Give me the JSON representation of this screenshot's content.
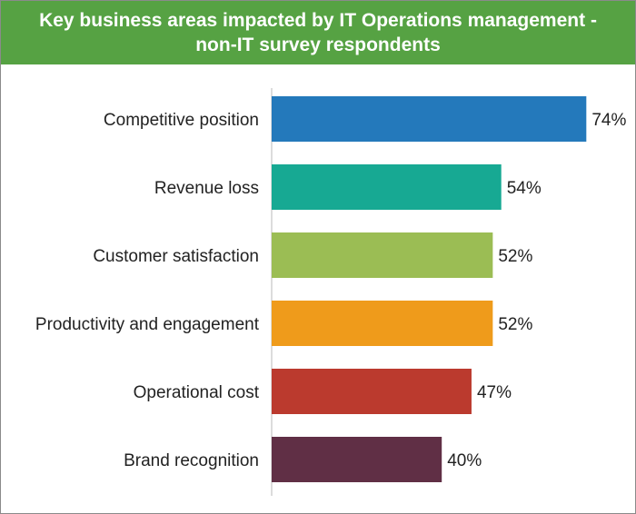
{
  "chart_data": {
    "type": "bar",
    "orientation": "horizontal",
    "title": "Key business areas impacted by IT Operations management -\nnon-IT survey respondents",
    "categories": [
      "Competitive position",
      "Revenue loss",
      "Customer satisfaction",
      "Productivity and engagement",
      "Operational cost",
      "Brand recognition"
    ],
    "values": [
      74,
      54,
      52,
      52,
      47,
      40
    ],
    "value_labels": [
      "74%",
      "54%",
      "52%",
      "52%",
      "47%",
      "40%"
    ],
    "colors": [
      "#2479bb",
      "#17a993",
      "#9bbd54",
      "#ef9b1b",
      "#bb3a2e",
      "#602f45"
    ],
    "xlim": [
      0,
      80
    ],
    "grid": false,
    "legend": "none"
  },
  "colors": {
    "title_background": "#56a243",
    "title_text": "#ffffff"
  }
}
